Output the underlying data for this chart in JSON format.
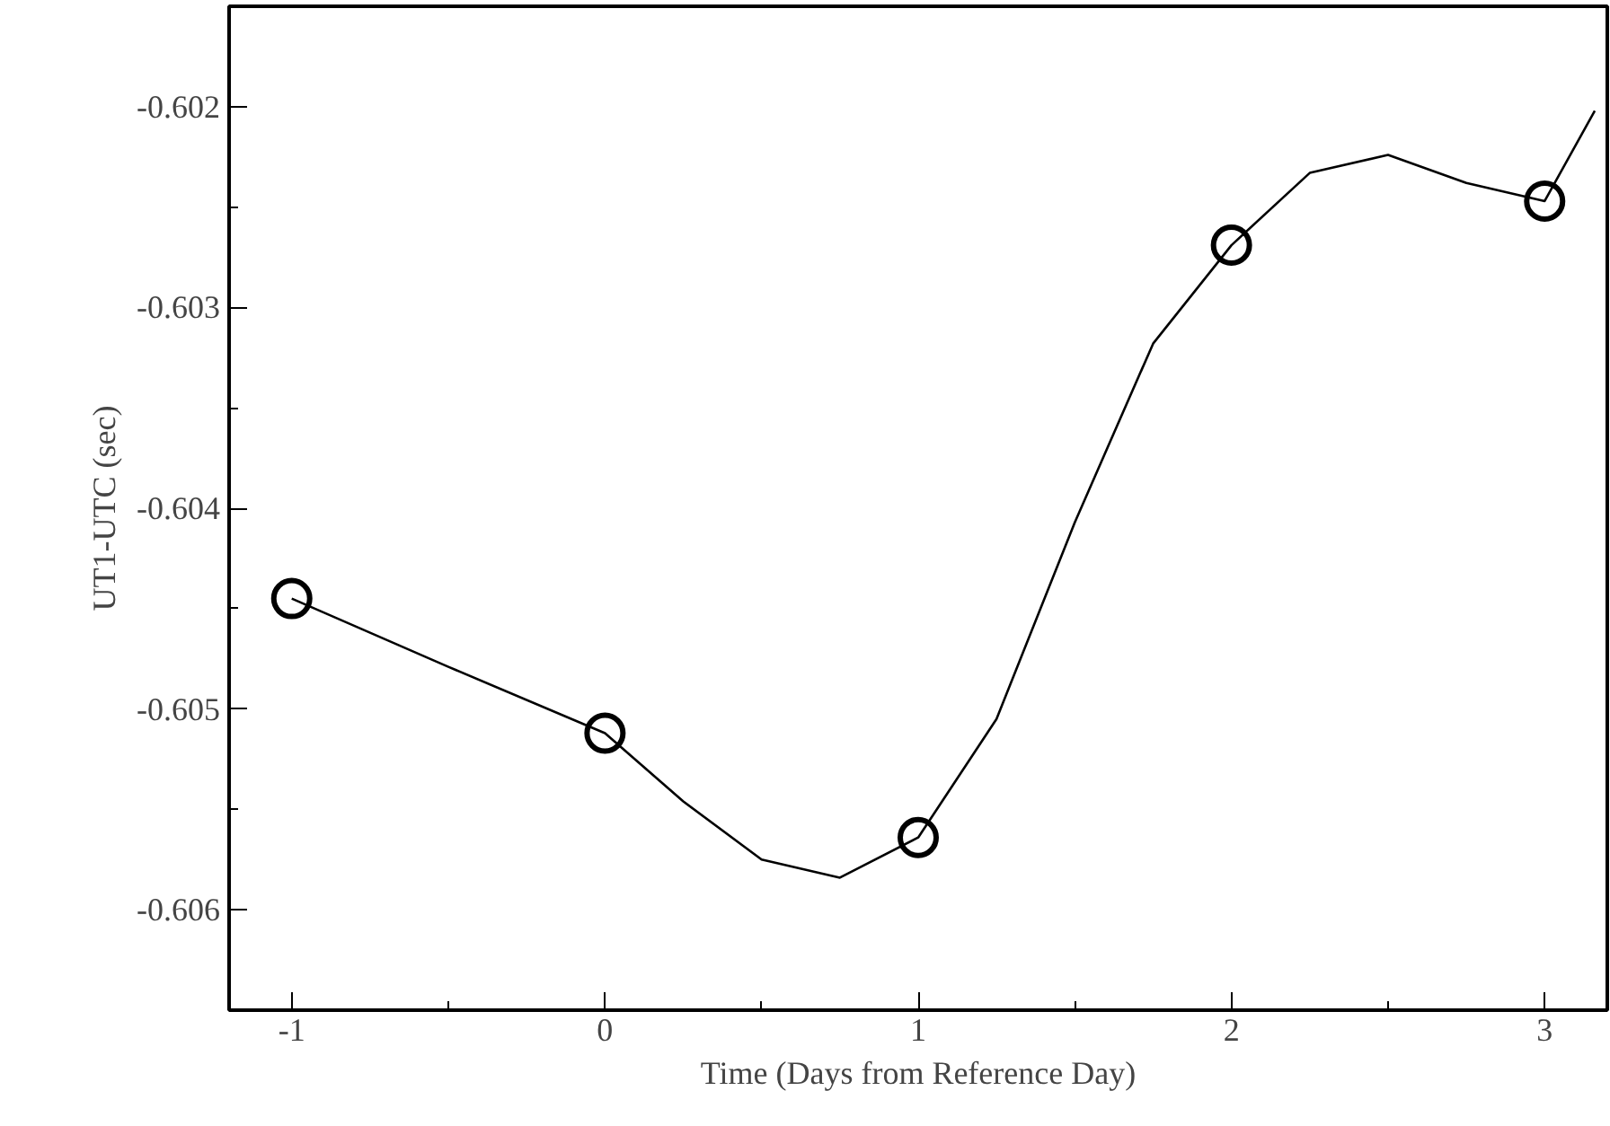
{
  "chart_data": {
    "type": "line",
    "xlabel": "Time (Days from Reference Day)",
    "ylabel": "UT1-UTC (sec)",
    "xlim": [
      -1.2,
      3.2
    ],
    "ylim": [
      -0.6065,
      -0.6015
    ],
    "xticks": [
      -1,
      0,
      1,
      2,
      3
    ],
    "yticks": [
      -0.606,
      -0.605,
      -0.604,
      -0.603,
      -0.602
    ],
    "grid": false,
    "series": [
      {
        "color": "#000000",
        "marker": "none",
        "line_style": "solid",
        "x": [
          -1,
          -0.5,
          0,
          0.25,
          0.5,
          0.75,
          1,
          1.25,
          1.5,
          1.75,
          2,
          2.25,
          2.5,
          2.75,
          3,
          3.16
        ],
        "values": [
          -0.60445,
          -0.60479,
          -0.60512,
          -0.60546,
          -0.60575,
          -0.60584,
          -0.60564,
          -0.60505,
          -0.60407,
          -0.60318,
          -0.60269,
          -0.60233,
          -0.60224,
          -0.60238,
          -0.60247,
          -0.60202
        ]
      },
      {
        "type": "scatter",
        "color": "#000000",
        "marker": "circle",
        "x": [
          -1,
          0,
          1,
          2,
          3
        ],
        "values": [
          -0.60445,
          -0.60512,
          -0.60564,
          -0.60269,
          -0.60247
        ]
      }
    ]
  }
}
